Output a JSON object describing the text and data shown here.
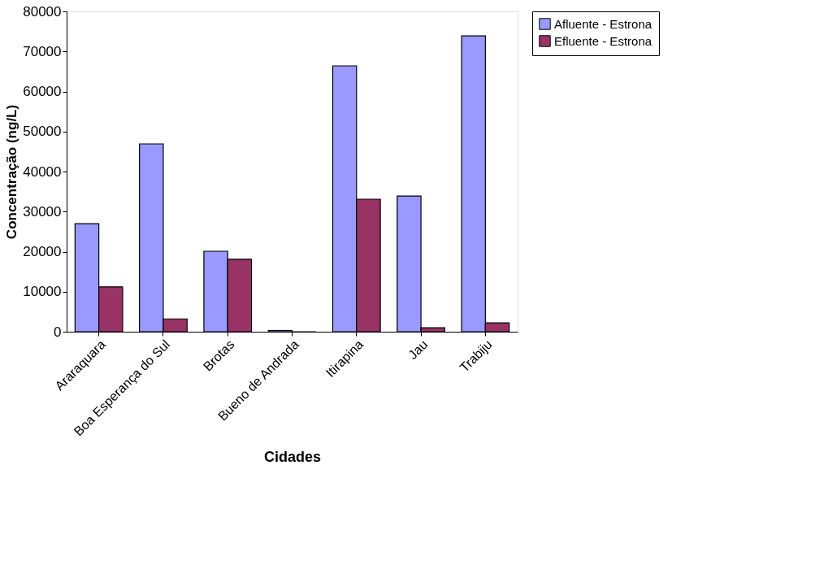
{
  "chart_data": {
    "type": "bar",
    "xlabel": "Cidades",
    "ylabel": "Concentração (ng/L)",
    "categories": [
      "Araraquara",
      "Boa Esperança do Sul",
      "Brotas",
      "Bueno de Andrada",
      "Itirapina",
      "Jau",
      "Trabiju"
    ],
    "series": [
      {
        "name": "Afluente - Estrona",
        "color": "#9999ff",
        "values": [
          27000,
          46900,
          20100,
          300,
          66400,
          33900,
          73900
        ]
      },
      {
        "name": "Efluente - Estrona",
        "color": "#993366",
        "values": [
          11200,
          3200,
          18100,
          0,
          33100,
          1000,
          2200
        ]
      }
    ],
    "ylim": [
      0,
      80000
    ],
    "yticks": [
      0,
      10000,
      20000,
      30000,
      40000,
      50000,
      60000,
      70000,
      80000
    ],
    "grid": false,
    "legend": "right"
  }
}
